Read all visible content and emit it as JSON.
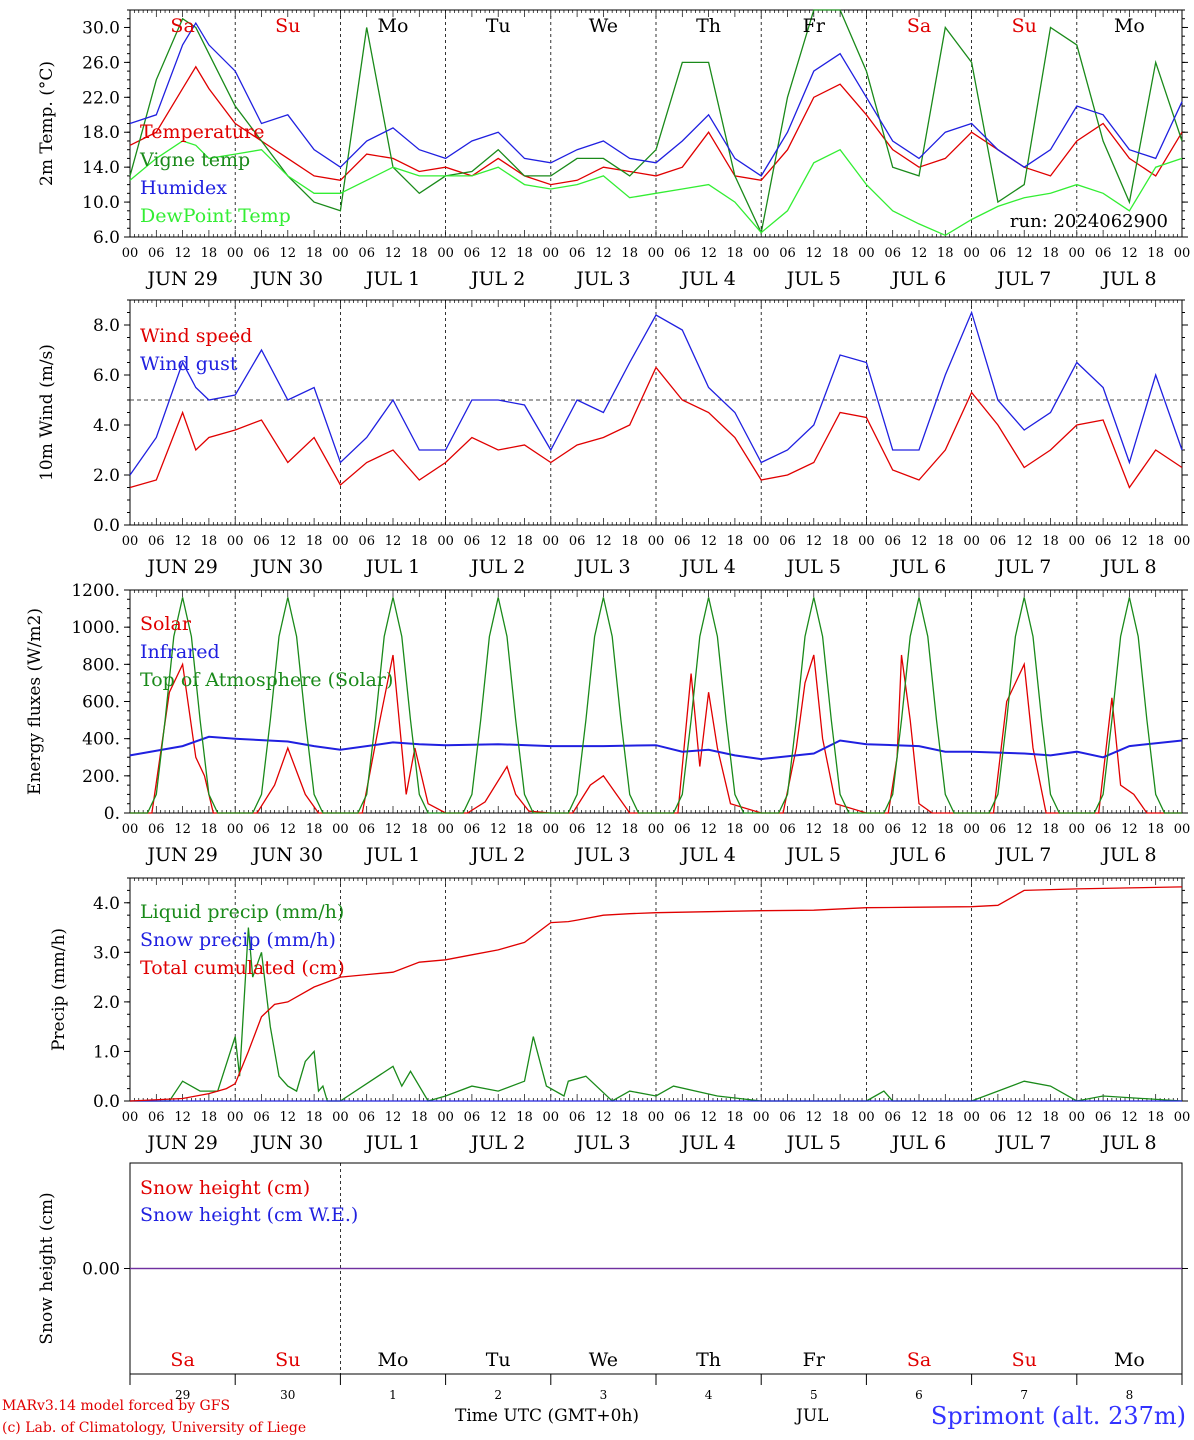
{
  "colors": {
    "red": "#e00000",
    "green": "#1a8a1a",
    "blue": "#2020e0",
    "lightgreen": "#33ee33",
    "purple": "#7030a0"
  },
  "days": {
    "abbr": [
      "Sa",
      "Su",
      "Mo",
      "Tu",
      "We",
      "Th",
      "Fr",
      "Sa",
      "Su",
      "Mo"
    ],
    "weekend": [
      true,
      true,
      false,
      false,
      false,
      false,
      false,
      true,
      true,
      false
    ],
    "dates": [
      "JUN 29",
      "JUN 30",
      "JUL  1",
      "JUL  2",
      "JUL  3",
      "JUL  4",
      "JUL  5",
      "JUL  6",
      "JUL  7",
      "JUL  8"
    ],
    "daynums": [
      "29",
      "30",
      "1",
      "2",
      "3",
      "4",
      "5",
      "6",
      "7",
      "8"
    ],
    "hour_labels": [
      "00",
      "06",
      "12",
      "18"
    ],
    "final_hour_label": "00"
  },
  "footer": {
    "model_line": "MARv3.14 model forced by GFS",
    "lab_line": "(c) Lab. of Climatology, University of Liege",
    "time_label": "Time UTC (GMT+0h)",
    "month_label": "JUL",
    "station": "Sprimont (alt. 237m)"
  },
  "chart_data": [
    {
      "type": "line",
      "ylabel": "2m Temp. (°C)",
      "ylim": [
        6.0,
        32.0
      ],
      "yticks": [
        "6.0",
        "10.0",
        "14.0",
        "18.0",
        "22.0",
        "26.0",
        "30.0"
      ],
      "annotation": "run: 2024062900",
      "series": [
        {
          "name": "Temperature",
          "color": "red",
          "x": [
            0,
            6,
            12,
            15,
            18,
            24,
            30,
            36,
            42,
            48,
            54,
            60,
            66,
            72,
            78,
            84,
            90,
            96,
            102,
            108,
            114,
            120,
            126,
            132,
            138,
            144,
            150,
            156,
            162,
            168,
            174,
            180,
            186,
            192,
            198,
            204,
            210,
            216,
            222,
            228,
            234,
            240
          ],
          "y": [
            16.5,
            18,
            23,
            25.5,
            23,
            19,
            17,
            15,
            13,
            12.5,
            15.5,
            15,
            13.5,
            14,
            13,
            15,
            13,
            12,
            12.5,
            14,
            13.5,
            13,
            14,
            18,
            13,
            12.5,
            16,
            22,
            23.5,
            20,
            16,
            14,
            15,
            18,
            16,
            14,
            13,
            17,
            19,
            15,
            13,
            18
          ]
        },
        {
          "name": "Vigne temp",
          "color": "green",
          "x": [
            0,
            6,
            12,
            15,
            18,
            24,
            30,
            36,
            42,
            48,
            54,
            60,
            66,
            72,
            78,
            84,
            90,
            96,
            102,
            108,
            114,
            120,
            126,
            132,
            138,
            144,
            150,
            156,
            162,
            168,
            174,
            180,
            186,
            192,
            198,
            204,
            210,
            216,
            222,
            228,
            234,
            240
          ],
          "y": [
            13,
            24,
            31,
            30,
            27,
            21,
            17,
            13,
            10,
            9,
            30,
            14,
            11,
            13,
            13.5,
            16,
            13,
            13,
            15,
            15,
            13,
            16,
            26,
            26,
            13,
            6.5,
            22,
            32,
            32,
            25,
            14,
            13,
            30,
            26,
            10,
            12,
            30,
            28,
            17,
            10,
            26,
            17
          ]
        },
        {
          "name": "Humidex",
          "color": "blue",
          "x": [
            0,
            6,
            12,
            15,
            18,
            24,
            30,
            36,
            42,
            48,
            54,
            60,
            66,
            72,
            78,
            84,
            90,
            96,
            102,
            108,
            114,
            120,
            126,
            132,
            138,
            144,
            150,
            156,
            162,
            168,
            174,
            180,
            186,
            192,
            198,
            204,
            210,
            216,
            222,
            228,
            234,
            240
          ],
          "y": [
            19,
            20,
            28,
            30.5,
            28,
            25,
            19,
            20,
            16,
            14,
            17,
            18.5,
            16,
            15,
            17,
            18,
            15,
            14.5,
            16,
            17,
            15,
            14.5,
            17,
            20,
            15,
            13,
            18,
            25,
            27,
            22,
            17,
            15,
            18,
            19,
            16,
            14,
            16,
            21,
            20,
            16,
            15,
            21.5
          ]
        },
        {
          "name": "DewPoint Temp",
          "color": "lightgreen",
          "x": [
            0,
            6,
            12,
            15,
            18,
            24,
            30,
            36,
            42,
            48,
            54,
            60,
            66,
            72,
            78,
            84,
            90,
            96,
            102,
            108,
            114,
            120,
            126,
            132,
            138,
            144,
            150,
            156,
            162,
            168,
            174,
            180,
            186,
            192,
            198,
            204,
            210,
            216,
            222,
            228,
            234,
            240
          ],
          "y": [
            12.5,
            15,
            17,
            16.5,
            15,
            15.5,
            16,
            13,
            11,
            11,
            12.5,
            14,
            13,
            13,
            13,
            14,
            12,
            11.5,
            12,
            13,
            10.5,
            11,
            11.5,
            12,
            10,
            6.5,
            9,
            14.5,
            16,
            12,
            9,
            7.5,
            6.2,
            8,
            9.5,
            10.5,
            11,
            12,
            11,
            9,
            14,
            15
          ]
        }
      ]
    },
    {
      "type": "line",
      "ylabel": "10m Wind (m/s)",
      "ylim": [
        0.0,
        9.0
      ],
      "yticks": [
        "0.0",
        "2.0",
        "4.0",
        "6.0",
        "8.0"
      ],
      "reference_line": 5.0,
      "series": [
        {
          "name": "Wind speed",
          "color": "red",
          "x": [
            0,
            6,
            12,
            15,
            18,
            24,
            30,
            36,
            42,
            48,
            54,
            60,
            66,
            72,
            78,
            84,
            90,
            96,
            102,
            108,
            114,
            120,
            126,
            132,
            138,
            144,
            150,
            156,
            162,
            168,
            174,
            180,
            186,
            192,
            198,
            204,
            210,
            216,
            222,
            228,
            234,
            240
          ],
          "y": [
            1.5,
            1.8,
            4.5,
            3,
            3.5,
            3.8,
            4.2,
            2.5,
            3.5,
            1.6,
            2.5,
            3,
            1.8,
            2.5,
            3.5,
            3,
            3.2,
            2.5,
            3.2,
            3.5,
            4,
            6.3,
            5,
            4.5,
            3.5,
            1.8,
            2,
            2.5,
            4.5,
            4.3,
            2.2,
            1.8,
            3,
            5.3,
            4,
            2.3,
            3,
            4,
            4.2,
            1.5,
            3,
            2.3
          ]
        },
        {
          "name": "Wind gust",
          "color": "blue",
          "x": [
            0,
            6,
            12,
            15,
            18,
            24,
            30,
            36,
            42,
            48,
            54,
            60,
            66,
            72,
            78,
            84,
            90,
            96,
            102,
            108,
            114,
            120,
            126,
            132,
            138,
            144,
            150,
            156,
            162,
            168,
            174,
            180,
            186,
            192,
            198,
            204,
            210,
            216,
            222,
            228,
            234,
            240
          ],
          "y": [
            2,
            3.5,
            6.5,
            5.5,
            5,
            5.2,
            7,
            5,
            5.5,
            2.5,
            3.5,
            5,
            3,
            3,
            5,
            5,
            4.8,
            3,
            5,
            4.5,
            6.5,
            8.4,
            7.8,
            5.5,
            4.5,
            2.5,
            3,
            4,
            6.8,
            6.5,
            3,
            3,
            6,
            8.5,
            5,
            3.8,
            4.5,
            6.5,
            5.5,
            2.5,
            6,
            3
          ]
        }
      ]
    },
    {
      "type": "line",
      "ylabel": "Energy fluxes (W/m2)",
      "ylim": [
        0,
        1200
      ],
      "yticks": [
        "0.",
        "200.",
        "400.",
        "600.",
        "800.",
        "1000.",
        "1200."
      ],
      "series": [
        {
          "name": "Solar",
          "color": "red",
          "x": [
            0,
            5,
            9,
            12,
            15,
            17,
            19,
            24,
            29,
            33,
            36,
            40,
            43,
            48,
            53,
            57,
            60,
            63,
            65,
            68,
            72,
            77,
            81,
            86,
            88,
            91,
            96,
            101,
            105,
            108,
            111,
            114,
            120,
            125,
            128,
            130,
            132,
            134,
            137,
            144,
            149,
            152,
            154,
            156,
            158,
            161,
            168,
            173,
            175,
            176,
            178,
            180,
            183,
            192,
            197,
            200,
            204,
            206,
            209,
            216,
            221,
            224,
            226,
            229,
            232,
            240
          ],
          "y": [
            0,
            0,
            650,
            800,
            300,
            200,
            0,
            0,
            0,
            150,
            350,
            100,
            0,
            0,
            0,
            500,
            850,
            100,
            350,
            50,
            0,
            0,
            60,
            250,
            100,
            10,
            0,
            0,
            150,
            200,
            100,
            0,
            0,
            0,
            750,
            250,
            650,
            350,
            50,
            0,
            0,
            350,
            700,
            850,
            400,
            50,
            0,
            0,
            300,
            850,
            500,
            50,
            0,
            0,
            0,
            600,
            800,
            350,
            0,
            0,
            0,
            620,
            150,
            100,
            0,
            0
          ]
        },
        {
          "name": "Infrared",
          "color": "blue",
          "x": [
            0,
            12,
            18,
            24,
            36,
            42,
            48,
            60,
            66,
            72,
            84,
            96,
            108,
            120,
            126,
            132,
            138,
            144,
            156,
            162,
            168,
            180,
            186,
            192,
            204,
            210,
            216,
            222,
            228,
            240
          ],
          "y": [
            310,
            360,
            410,
            400,
            385,
            360,
            340,
            380,
            370,
            365,
            370,
            360,
            360,
            365,
            330,
            340,
            310,
            290,
            320,
            390,
            370,
            360,
            330,
            330,
            320,
            310,
            330,
            300,
            360,
            390
          ]
        },
        {
          "name": "Top of Atmosphere (Solar)",
          "color": "green",
          "x": [
            0,
            2,
            4,
            6,
            8,
            10,
            12,
            14,
            16,
            18,
            20,
            22,
            24
          ],
          "y": [
            0,
            0,
            0,
            100,
            500,
            950,
            1160,
            950,
            500,
            100,
            0,
            0,
            0
          ],
          "repeat_daily": true
        }
      ]
    },
    {
      "type": "line",
      "ylabel": "Precip (mm/h)",
      "ylim": [
        0.0,
        4.5
      ],
      "yticks": [
        "0.0",
        "1.0",
        "2.0",
        "3.0",
        "4.0"
      ],
      "series": [
        {
          "name": "Liquid precip (mm/h)",
          "color": "green",
          "x": [
            0,
            9,
            12,
            16,
            20,
            24,
            25,
            27,
            28,
            30,
            32,
            34,
            36,
            38,
            40,
            42,
            43,
            44,
            45,
            48,
            60,
            62,
            64,
            68,
            72,
            78,
            84,
            90,
            92,
            95,
            99,
            100,
            104,
            110,
            114,
            120,
            124,
            134,
            144,
            168,
            170,
            172,
            174,
            192,
            198,
            204,
            210,
            216,
            222,
            240
          ],
          "y": [
            0,
            0,
            0.4,
            0.2,
            0.2,
            1.3,
            0.5,
            3.5,
            2.5,
            3.0,
            1.5,
            0.5,
            0.3,
            0.2,
            0.8,
            1.0,
            0.2,
            0.3,
            0,
            0,
            0.7,
            0.3,
            0.6,
            0,
            0.1,
            0.3,
            0.2,
            0.4,
            1.3,
            0.3,
            0.1,
            0.4,
            0.5,
            0,
            0.2,
            0.1,
            0.3,
            0.1,
            0,
            0,
            0.1,
            0.2,
            0,
            0,
            0.2,
            0.4,
            0.3,
            0,
            0.1,
            0
          ]
        },
        {
          "name": "Snow precip (mm/h)",
          "color": "blue",
          "x": [
            0,
            240
          ],
          "y": [
            0,
            0
          ]
        },
        {
          "name": "Total cumulated (cm)",
          "color": "red",
          "x": [
            0,
            12,
            18,
            22,
            24,
            27,
            30,
            33,
            36,
            42,
            48,
            54,
            60,
            66,
            72,
            78,
            84,
            90,
            96,
            100,
            102,
            108,
            114,
            120,
            132,
            144,
            156,
            168,
            180,
            192,
            198,
            204,
            216,
            228,
            240
          ],
          "y": [
            0,
            0.05,
            0.15,
            0.25,
            0.35,
            1.0,
            1.7,
            1.95,
            2.0,
            2.3,
            2.5,
            2.55,
            2.6,
            2.8,
            2.85,
            2.95,
            3.05,
            3.2,
            3.6,
            3.62,
            3.65,
            3.75,
            3.78,
            3.8,
            3.82,
            3.84,
            3.85,
            3.9,
            3.91,
            3.92,
            3.95,
            4.25,
            4.28,
            4.3,
            4.32
          ]
        }
      ]
    },
    {
      "type": "line",
      "ylabel": "Snow height (cm)",
      "ylim": [
        -1.0,
        1.0
      ],
      "yticks": [
        "0.00"
      ],
      "series": [
        {
          "name": "Snow height (cm)",
          "color": "red",
          "x": [
            0,
            240
          ],
          "y": [
            0,
            0
          ]
        },
        {
          "name": "Snow height (cm W.E.)",
          "color": "blue",
          "x": [
            0,
            240
          ],
          "y": [
            0,
            0
          ]
        }
      ]
    }
  ]
}
